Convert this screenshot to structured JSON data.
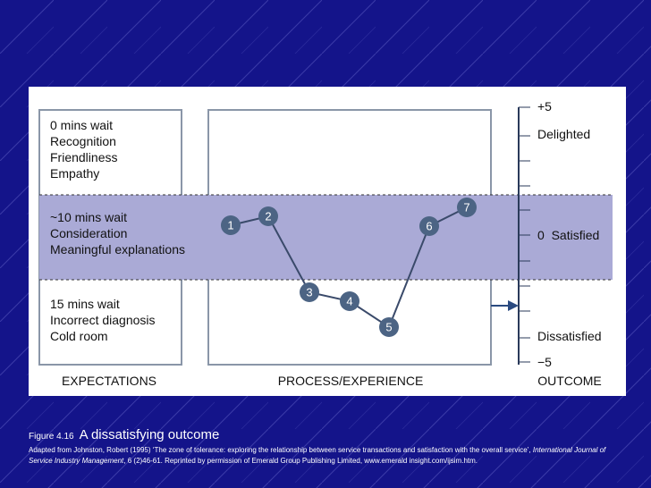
{
  "diagram": {
    "expectations": [
      "0 mins wait",
      "Recognition",
      "Friendliness",
      "Empathy"
    ],
    "tolerance": [
      "~10 mins wait",
      "Consideration",
      "Meaningful explanations"
    ],
    "below": [
      "15 mins wait",
      "Incorrect diagnosis",
      "Cold room"
    ],
    "points": [
      "1",
      "2",
      "3",
      "4",
      "5",
      "6",
      "7"
    ],
    "scale": {
      "top": "+5",
      "delighted": "Delighted",
      "satisfied": "0  Satisfied",
      "dissatisfied": "Dissatisfied",
      "bottom": "−5"
    },
    "footer": [
      "EXPECTATIONS",
      "PROCESS/EXPERIENCE",
      "OUTCOME"
    ]
  },
  "caption": {
    "figure": "Figure 4.16",
    "title": "A dissatisfying outcome",
    "citation_start": "Adapted from Johnston, Robert (1995) ‘The zone of tolerance: exploring the relationship between service transactions and satisfaction with the overall service’, ",
    "citation_journal": "International Journal of Service Industry Management",
    "citation_end": ", 6 (2)46-61. Reprinted by permission of Emerald Group Publishing Limited, www.emerald insight.com/ijsim.htm."
  }
}
